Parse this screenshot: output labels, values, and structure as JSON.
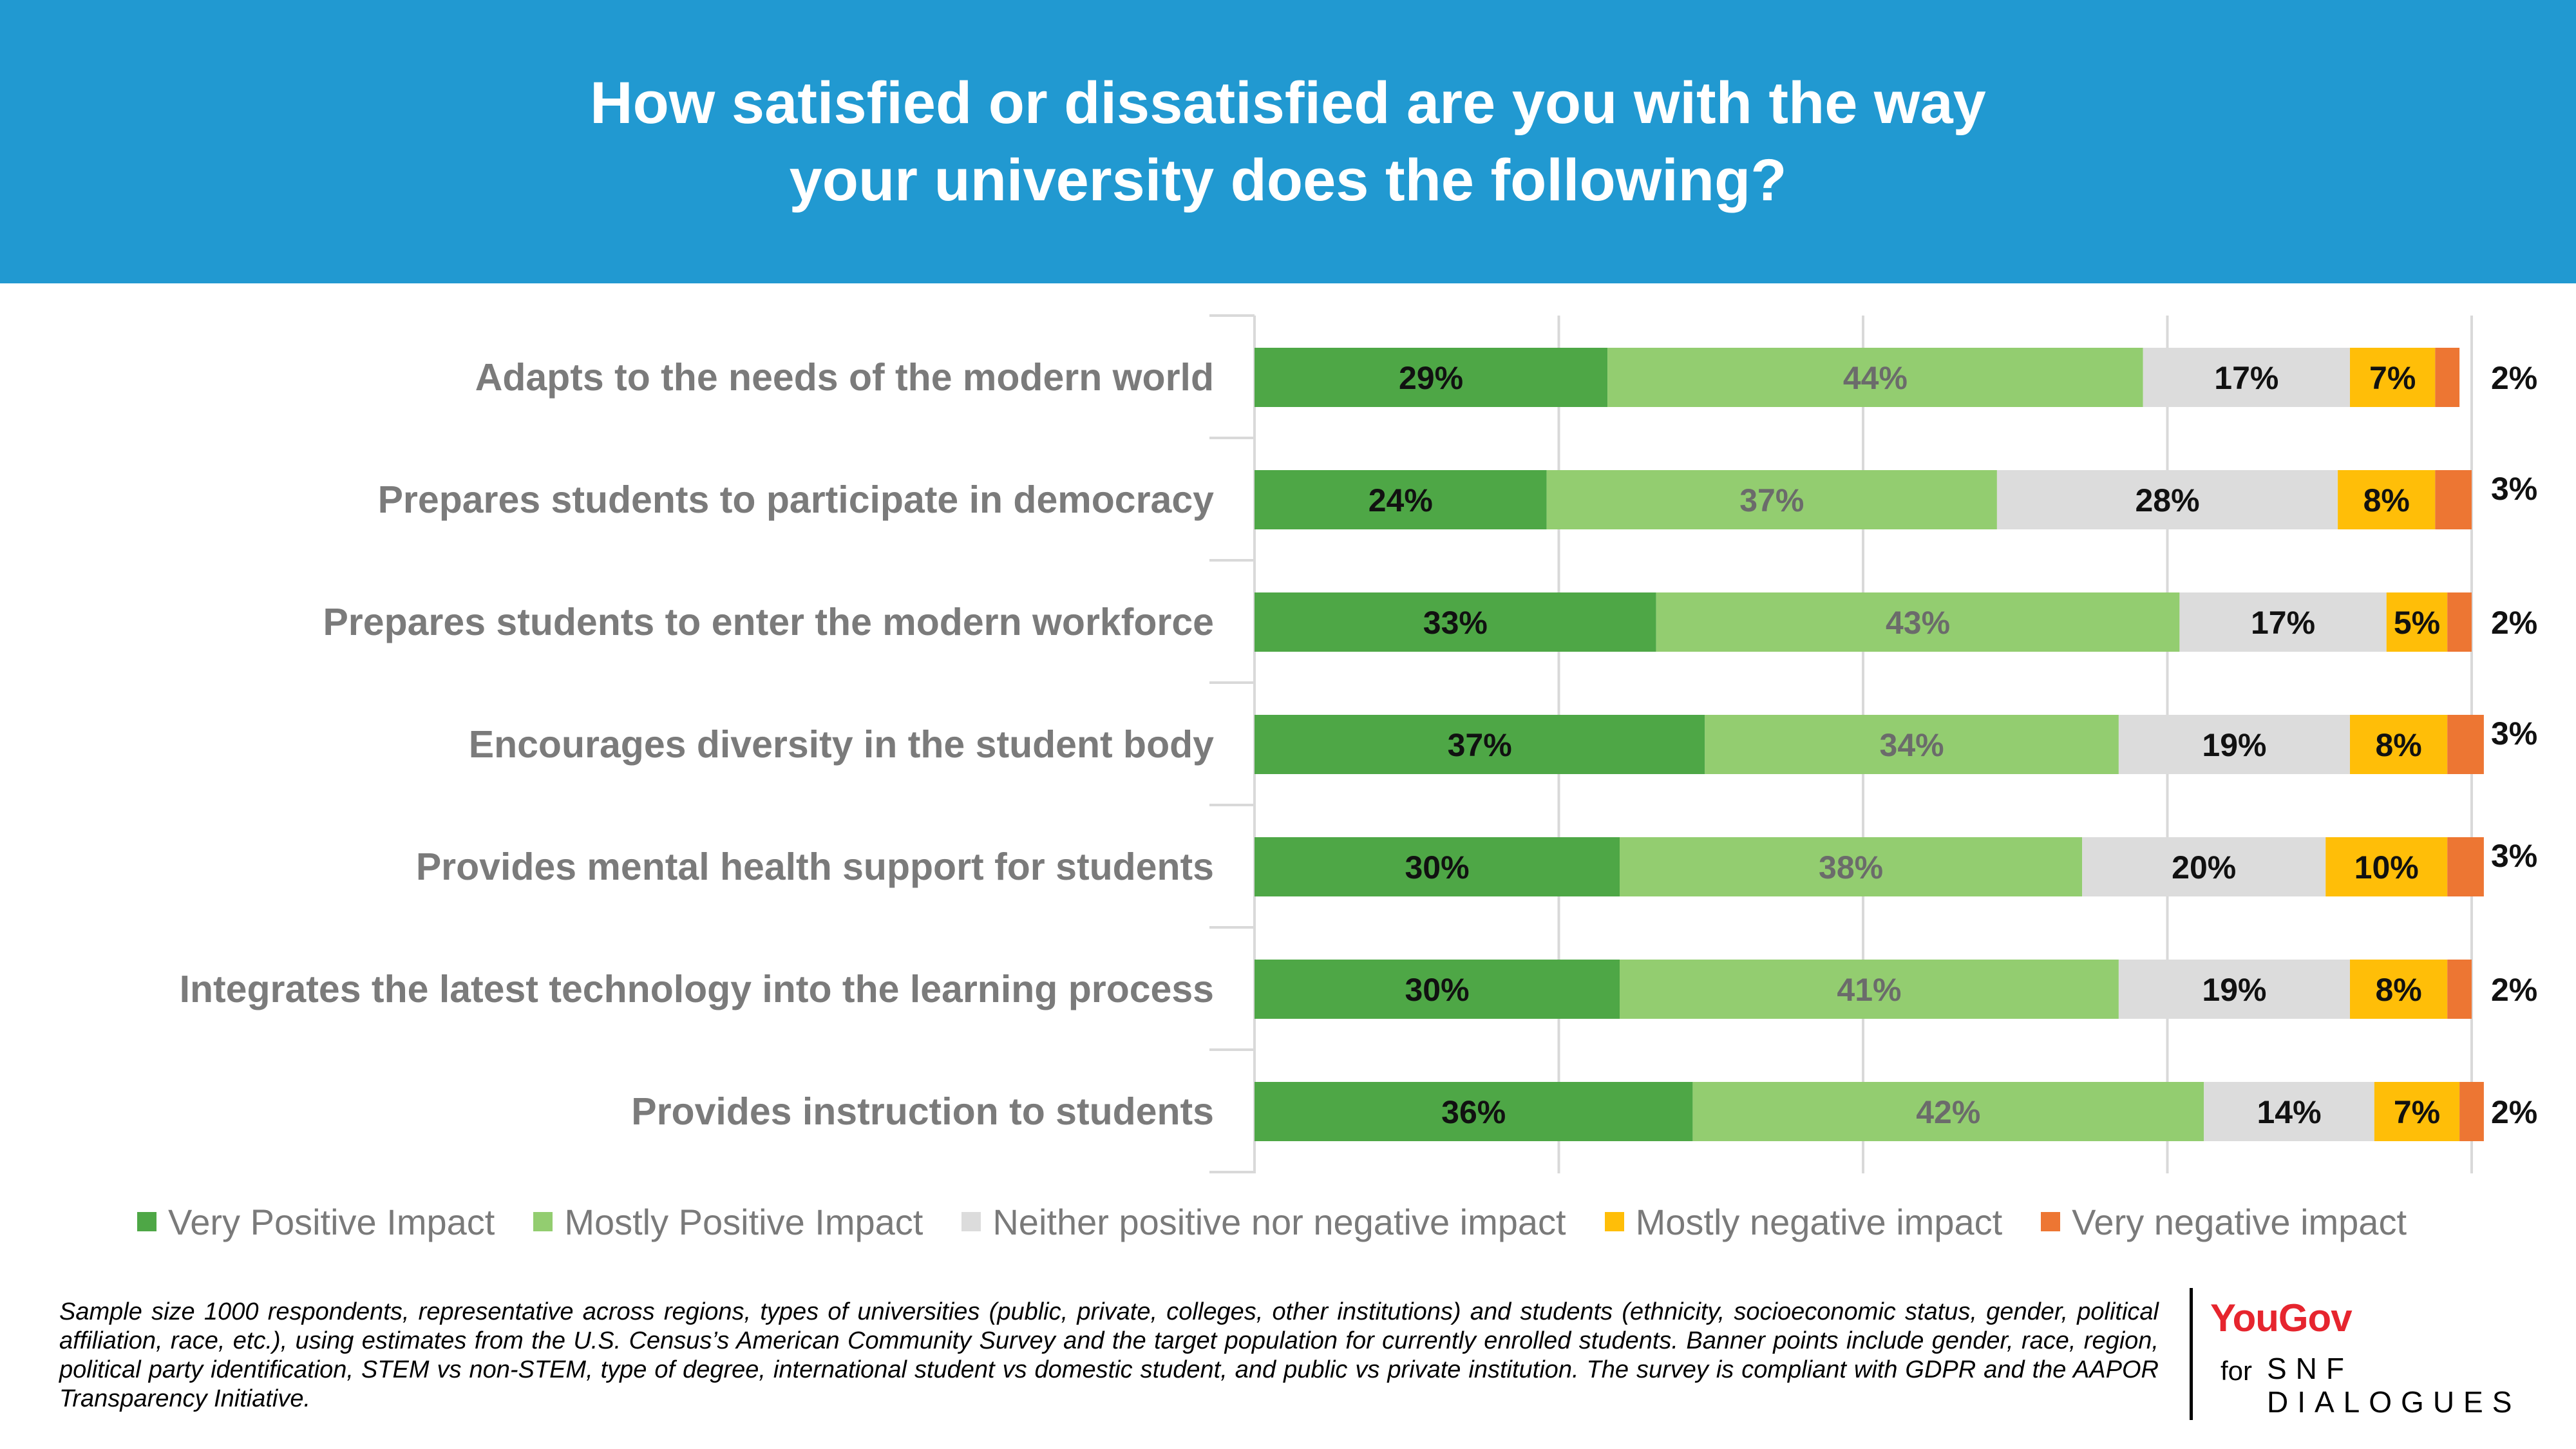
{
  "title": {
    "line1": "How satisfied or dissatisfied are you with the way",
    "line2": "your university does the following?"
  },
  "chart_data": {
    "type": "bar",
    "orientation": "horizontal",
    "stacked": true,
    "categories": [
      "Adapts to the needs of the modern world",
      "Prepares students to participate in democracy",
      "Prepares students to enter the modern workforce",
      "Encourages diversity in the student body",
      "Provides mental health support for students",
      "Integrates the latest technology into the learning process",
      "Provides instruction to students"
    ],
    "series": [
      {
        "name": "Very Positive Impact",
        "color": "#4ea746",
        "values": [
          29,
          24,
          33,
          37,
          30,
          30,
          36
        ]
      },
      {
        "name": "Mostly Positive Impact",
        "color": "#93cd70",
        "values": [
          44,
          37,
          43,
          34,
          38,
          41,
          42
        ]
      },
      {
        "name": "Neither positive nor negative impact",
        "color": "#dcdcdc",
        "values": [
          17,
          28,
          17,
          19,
          20,
          19,
          14
        ]
      },
      {
        "name": "Mostly negative impact",
        "color": "#ffbe08",
        "values": [
          7,
          8,
          5,
          8,
          10,
          8,
          7
        ]
      },
      {
        "name": "Very negative impact",
        "color": "#ed7633",
        "values": [
          2,
          3,
          2,
          3,
          3,
          2,
          2
        ]
      }
    ],
    "value_suffix": "%",
    "xlim": [
      0,
      100
    ],
    "grid": "vertical gridlines",
    "legend_position": "bottom"
  },
  "footnote": "Sample size 1000 respondents, representative across regions, types of universities (public, private, colleges, other institutions) and students (ethnicity, socioeconomic status, gender, political affiliation, race, etc.), using estimates from the U.S. Census’s American Community Survey and the target population for currently enrolled students. Banner points include gender, race, region, political party identification, STEM vs non-STEM, type of degree, international student vs domestic student, and public vs private institution. The survey is compliant with GDPR and the AAPOR Transparency Initiative.",
  "logo": {
    "brand": "YouGov",
    "for": "for",
    "partner_line1": "SNF",
    "partner_line2": "DIALOGUES"
  }
}
